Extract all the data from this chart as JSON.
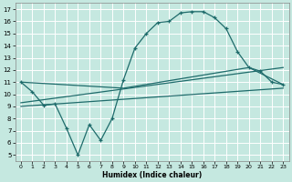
{
  "bg_color": "#c5e8e0",
  "grid_color": "#b0d8d0",
  "line_color": "#1e6b6b",
  "xlabel": "Humidex (Indice chaleur)",
  "xlim": [
    -0.5,
    23.5
  ],
  "ylim": [
    4.5,
    17.5
  ],
  "yticks": [
    5,
    6,
    7,
    8,
    9,
    10,
    11,
    12,
    13,
    14,
    15,
    16,
    17
  ],
  "xticks": [
    0,
    1,
    2,
    3,
    4,
    5,
    6,
    7,
    8,
    9,
    10,
    11,
    12,
    13,
    14,
    15,
    16,
    17,
    18,
    19,
    20,
    21,
    22,
    23
  ],
  "curve_x": [
    0,
    1,
    2,
    3,
    4,
    5,
    6,
    7,
    8,
    9,
    10,
    11,
    12,
    13,
    14,
    15,
    16,
    17,
    18,
    19,
    20,
    21,
    22,
    23
  ],
  "curve_y": [
    11.0,
    10.2,
    9.1,
    9.2,
    7.2,
    5.0,
    7.5,
    6.2,
    8.0,
    11.2,
    13.8,
    15.0,
    15.9,
    16.0,
    16.7,
    16.8,
    16.8,
    16.3,
    15.4,
    13.5,
    12.2,
    11.9,
    11.0,
    10.8
  ],
  "line1_x": [
    0,
    9,
    20,
    23
  ],
  "line1_y": [
    11.0,
    10.5,
    12.2,
    10.8
  ],
  "line2_x": [
    0,
    23
  ],
  "line2_y": [
    9.3,
    12.2
  ],
  "line3_x": [
    0,
    23
  ],
  "line3_y": [
    9.0,
    10.5
  ]
}
